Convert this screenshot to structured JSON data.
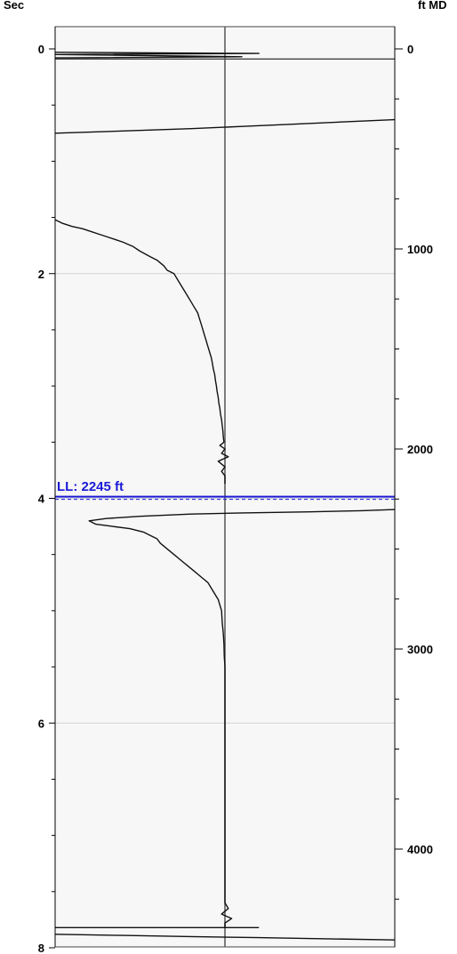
{
  "chart_data": {
    "type": "line",
    "left_axis": {
      "label": "Sec",
      "range": [
        0,
        8
      ],
      "reversed": true,
      "tick_labels": [
        "0",
        "2",
        "4",
        "6",
        "8"
      ],
      "major_ticks": [
        0,
        2,
        4,
        6,
        8
      ],
      "minor_step": 0.5
    },
    "right_axis": {
      "label": "ft MD",
      "range": [
        -150,
        4550
      ],
      "tick_labels": [
        "0",
        "1000",
        "2000",
        "3000",
        "4000"
      ],
      "major_ticks": [
        0,
        1000,
        2000,
        3000,
        4000
      ],
      "minor_step": 250
    },
    "gridlines": [
      2,
      4,
      6
    ],
    "marker": {
      "label": "LL: 2245 ft",
      "depth_ft": 2245,
      "color": "#1a1ad6",
      "style": "dashed"
    },
    "center_line": true,
    "series": [
      {
        "points": [
          [
            0.0,
            0.03
          ],
          [
            0.6,
            0.04
          ],
          [
            0.0,
            0.05
          ],
          [
            0.55,
            0.07
          ],
          [
            0.0,
            0.08
          ]
        ]
      },
      {
        "points": [
          [
            0.0,
            0.75
          ],
          [
            0.2,
            0.73
          ],
          [
            0.4,
            0.71
          ],
          [
            0.55,
            0.69
          ],
          [
            0.7,
            0.67
          ],
          [
            0.85,
            0.65
          ],
          [
            1.0,
            0.63
          ]
        ]
      },
      {
        "points": [
          [
            0.0,
            1.52
          ],
          [
            0.02,
            1.55
          ],
          [
            0.05,
            1.58
          ],
          [
            0.08,
            1.6
          ],
          [
            0.1,
            1.62
          ],
          [
            0.13,
            1.65
          ],
          [
            0.15,
            1.67
          ],
          [
            0.18,
            1.7
          ],
          [
            0.2,
            1.72
          ],
          [
            0.23,
            1.76
          ],
          [
            0.25,
            1.8
          ],
          [
            0.28,
            1.85
          ],
          [
            0.3,
            1.88
          ],
          [
            0.32,
            1.93
          ],
          [
            0.33,
            1.97
          ],
          [
            0.35,
            2.0
          ],
          [
            0.36,
            2.05
          ],
          [
            0.37,
            2.1
          ],
          [
            0.38,
            2.15
          ],
          [
            0.39,
            2.2
          ],
          [
            0.4,
            2.25
          ],
          [
            0.41,
            2.3
          ],
          [
            0.42,
            2.35
          ],
          [
            0.425,
            2.4
          ],
          [
            0.43,
            2.45
          ],
          [
            0.435,
            2.5
          ],
          [
            0.44,
            2.55
          ],
          [
            0.445,
            2.6
          ],
          [
            0.45,
            2.65
          ],
          [
            0.455,
            2.7
          ],
          [
            0.46,
            2.75
          ],
          [
            0.463,
            2.8
          ],
          [
            0.466,
            2.85
          ],
          [
            0.47,
            2.9
          ],
          [
            0.472,
            2.95
          ],
          [
            0.475,
            3.0
          ],
          [
            0.477,
            3.05
          ],
          [
            0.48,
            3.1
          ],
          [
            0.482,
            3.15
          ],
          [
            0.485,
            3.2
          ],
          [
            0.487,
            3.25
          ],
          [
            0.49,
            3.3
          ],
          [
            0.492,
            3.35
          ],
          [
            0.494,
            3.4
          ],
          [
            0.495,
            3.45
          ],
          [
            0.497,
            3.5
          ],
          [
            0.485,
            3.53
          ],
          [
            0.5,
            3.56
          ],
          [
            0.49,
            3.6
          ],
          [
            0.51,
            3.63
          ],
          [
            0.48,
            3.67
          ],
          [
            0.5,
            3.72
          ],
          [
            0.49,
            3.76
          ],
          [
            0.5,
            3.8
          ],
          [
            0.5,
            3.87
          ]
        ]
      },
      {
        "points": [
          [
            1.0,
            4.1
          ],
          [
            0.9,
            4.11
          ],
          [
            0.75,
            4.12
          ],
          [
            0.55,
            4.13
          ],
          [
            0.4,
            4.14
          ],
          [
            0.25,
            4.16
          ],
          [
            0.15,
            4.18
          ],
          [
            0.1,
            4.2
          ],
          [
            0.12,
            4.23
          ],
          [
            0.17,
            4.25
          ],
          [
            0.22,
            4.27
          ],
          [
            0.26,
            4.3
          ],
          [
            0.28,
            4.33
          ],
          [
            0.3,
            4.36
          ],
          [
            0.31,
            4.4
          ],
          [
            0.33,
            4.45
          ],
          [
            0.35,
            4.5
          ],
          [
            0.37,
            4.55
          ],
          [
            0.39,
            4.6
          ],
          [
            0.41,
            4.65
          ],
          [
            0.43,
            4.7
          ],
          [
            0.45,
            4.75
          ],
          [
            0.46,
            4.8
          ],
          [
            0.47,
            4.85
          ],
          [
            0.48,
            4.9
          ],
          [
            0.485,
            4.95
          ],
          [
            0.49,
            5.0
          ],
          [
            0.492,
            5.1
          ],
          [
            0.495,
            5.2
          ],
          [
            0.497,
            5.3
          ],
          [
            0.498,
            5.4
          ],
          [
            0.5,
            5.5
          ],
          [
            0.5,
            5.7
          ],
          [
            0.5,
            6.0
          ],
          [
            0.5,
            6.3
          ],
          [
            0.5,
            6.6
          ],
          [
            0.5,
            6.9
          ],
          [
            0.5,
            7.2
          ],
          [
            0.5,
            7.5
          ],
          [
            0.5,
            7.6
          ],
          [
            0.51,
            7.65
          ],
          [
            0.49,
            7.7
          ],
          [
            0.52,
            7.74
          ],
          [
            0.5,
            7.78
          ],
          [
            0.5,
            7.82
          ]
        ]
      },
      {
        "points": [
          [
            0.0,
            7.82
          ],
          [
            0.3,
            7.82
          ],
          [
            0.6,
            7.82
          ]
        ]
      },
      {
        "points": [
          [
            0.0,
            7.88
          ],
          [
            0.2,
            7.89
          ],
          [
            0.4,
            7.9
          ],
          [
            0.6,
            7.91
          ],
          [
            0.8,
            7.92
          ],
          [
            1.0,
            7.93
          ]
        ]
      }
    ]
  }
}
